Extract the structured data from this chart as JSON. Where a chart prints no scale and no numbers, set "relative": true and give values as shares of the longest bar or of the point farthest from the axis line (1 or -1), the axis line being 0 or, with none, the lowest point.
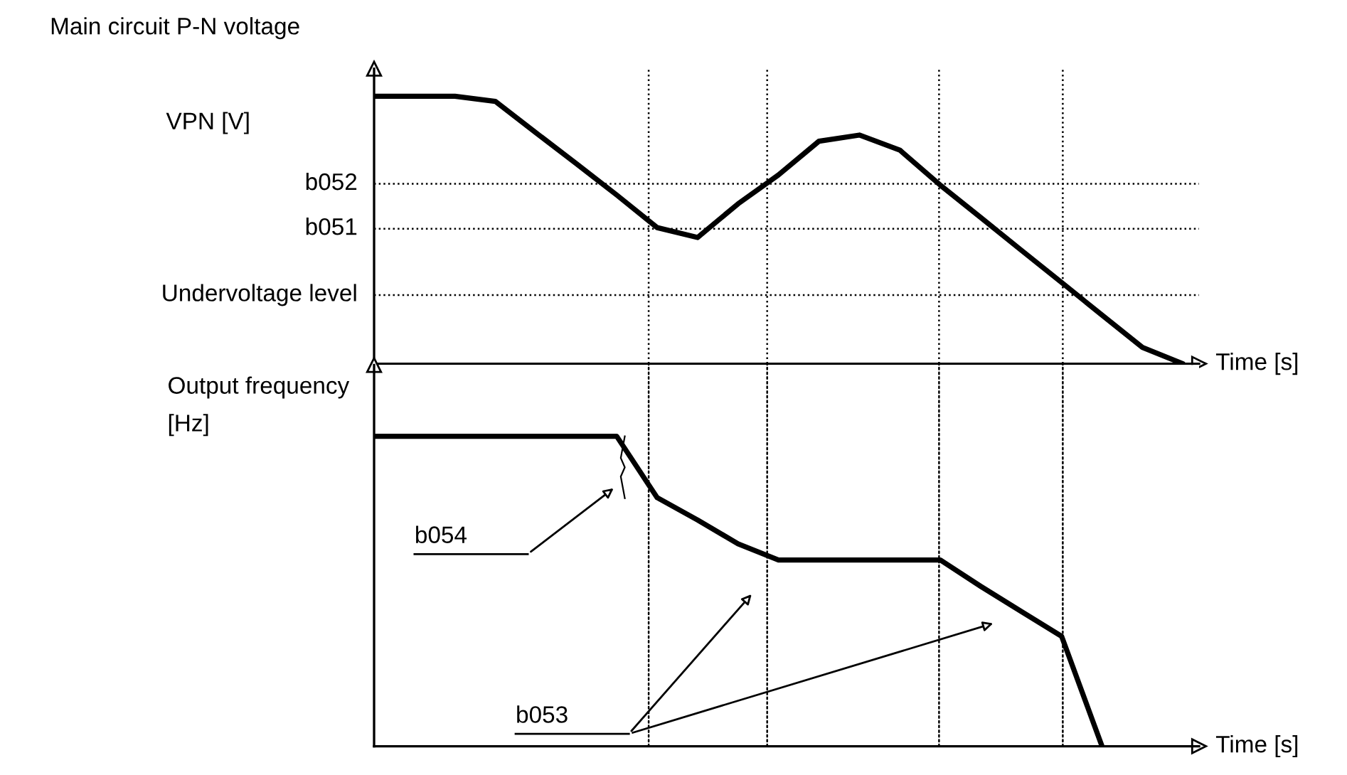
{
  "chart_data": [
    {
      "type": "line",
      "title": "Main circuit P-N voltage",
      "relative": true,
      "categories": [
        null,
        null,
        null,
        null,
        null,
        null,
        null,
        null,
        null,
        null,
        null,
        null,
        null,
        null,
        null,
        null,
        null,
        null,
        null,
        null,
        null
      ],
      "series": [
        {
          "color": "#000000",
          "values": [
            1.0,
            1.0,
            1.0,
            0.981,
            0.864,
            0.748,
            0.631,
            0.509,
            0.472,
            0.598,
            0.706,
            0.832,
            0.855,
            0.799,
            0.668,
            0.547,
            0.425,
            0.304,
            0.182,
            0.061,
            0.0
          ]
        }
      ],
      "ref_lines": [
        {
          "axis": "y",
          "value": 0.673,
          "label": "b052",
          "line_style": "dotted"
        },
        {
          "axis": "y",
          "value": 0.505,
          "label": "b051",
          "line_style": "dotted"
        },
        {
          "axis": "y",
          "value": 0.257,
          "label": "Undervoltage level",
          "line_style": "dotted"
        }
      ],
      "annotations": [
        "VPN [V]"
      ],
      "xlabel": "Time [s]",
      "legend": false,
      "tick_labels": false,
      "marker": "none",
      "line_style": "solid"
    },
    {
      "type": "line",
      "title": "Output frequency\n[Hz]",
      "relative": true,
      "categories": [
        null,
        null,
        null,
        null,
        null,
        null,
        null,
        null,
        null,
        null,
        null,
        null,
        null,
        null,
        null,
        null,
        null,
        null,
        null,
        null,
        null
      ],
      "series": [
        {
          "color": "#000000",
          "values": [
            1.0,
            1.0,
            1.0,
            1.0,
            1.0,
            1.0,
            1.0,
            0.802,
            0.73,
            0.653,
            0.601,
            0.601,
            0.601,
            0.601,
            0.601,
            0.516,
            0.435,
            0.355,
            0.0,
            null,
            null
          ]
        }
      ],
      "annotations": [
        "b054",
        "b053"
      ],
      "xlabel": "Time [s]",
      "legend": false,
      "tick_labels": false,
      "marker": "none",
      "line_style": "solid"
    }
  ]
}
